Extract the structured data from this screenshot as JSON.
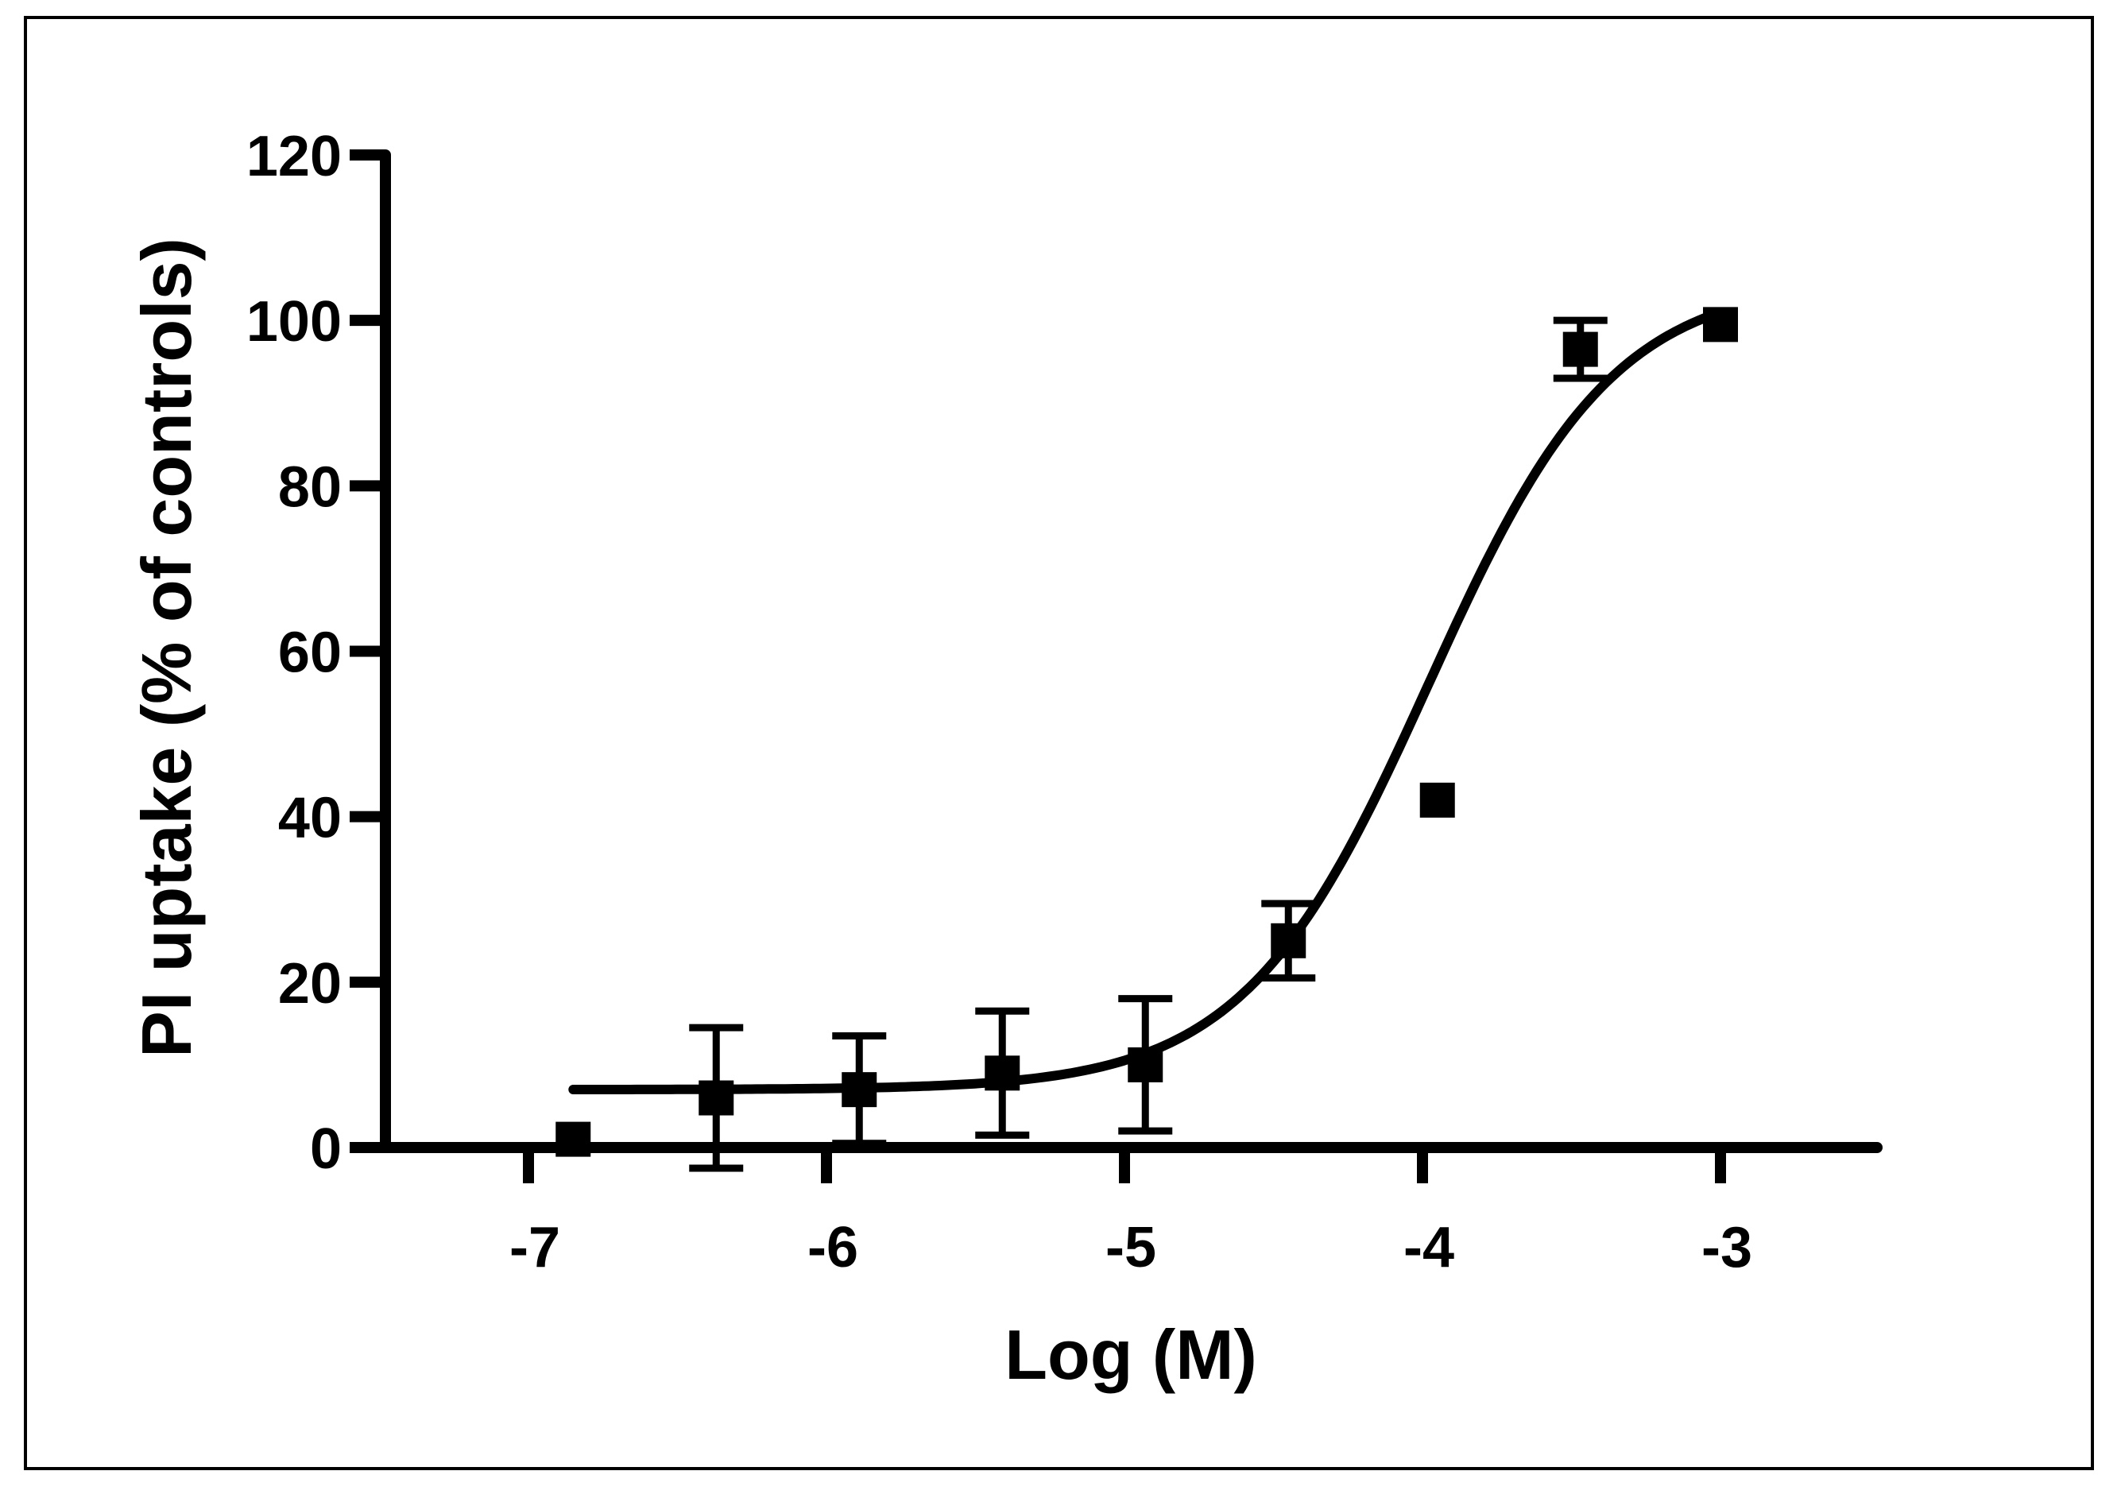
{
  "chart_data": {
    "type": "scatter",
    "title": "",
    "xlabel": "Log (M)",
    "ylabel": "PI uptake (% of controls)",
    "xlim": [
      -7.5,
      -2.5
    ],
    "ylim": [
      0,
      120
    ],
    "x_ticks": [
      -7,
      -6,
      -5,
      -4,
      -3
    ],
    "x_tick_labels": [
      "-7",
      "-6",
      "-5",
      "-4",
      "-3"
    ],
    "y_ticks": [
      0,
      20,
      40,
      60,
      80,
      100,
      120
    ],
    "y_tick_labels": [
      "0",
      "20",
      "40",
      "60",
      "80",
      "100",
      "120"
    ],
    "grid": false,
    "legend": "none",
    "series": [
      {
        "marker": "square",
        "points": [
          {
            "x": -6.85,
            "y": 1,
            "err": 0
          },
          {
            "x": -6.37,
            "y": 6,
            "err": 8.5
          },
          {
            "x": -5.89,
            "y": 7,
            "err": 6.5
          },
          {
            "x": -5.41,
            "y": 9,
            "err": 7.5
          },
          {
            "x": -4.93,
            "y": 10,
            "err": 8
          },
          {
            "x": -4.45,
            "y": 25,
            "err": 4.5
          },
          {
            "x": -3.95,
            "y": 42,
            "err": 0
          },
          {
            "x": -3.47,
            "y": 96.5,
            "err": 3.5
          },
          {
            "x": -3.0,
            "y": 99.5,
            "err": 0
          }
        ]
      }
    ],
    "fit_curve": {
      "type": "sigmoidal dose-response",
      "bottom": 7,
      "top": 105,
      "log_ec50": -3.98,
      "hill_slope": 1.4,
      "x_range": [
        -6.85,
        -3.0
      ]
    },
    "colors": {
      "line": "#000000",
      "background": "#ffffff"
    }
  }
}
